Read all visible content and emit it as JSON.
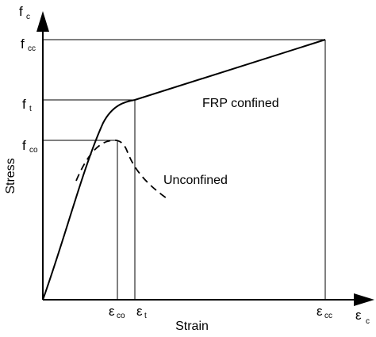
{
  "axes": {
    "y_main": "f",
    "y_sub": "c",
    "x_main": "ε",
    "x_sub": "c",
    "ylabel": "Stress",
    "xlabel": "Strain"
  },
  "y_ticks": [
    {
      "main": "f",
      "sub": "cc"
    },
    {
      "main": "f",
      "sub": "t"
    },
    {
      "main": "f",
      "sub": "co"
    }
  ],
  "x_ticks": [
    {
      "main": "ε",
      "sub": "co"
    },
    {
      "main": "ε",
      "sub": "t"
    },
    {
      "main": "ε",
      "sub": "cc"
    }
  ],
  "curves": {
    "confined_label": "FRP confined",
    "unconfined_label": "Unconfined"
  }
}
